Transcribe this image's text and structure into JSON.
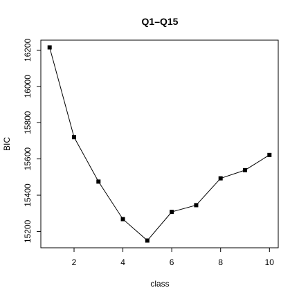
{
  "chart_data": {
    "type": "line",
    "title": "Q1–Q15",
    "xlabel": "class",
    "ylabel": "BIC",
    "x": [
      1,
      2,
      3,
      4,
      5,
      6,
      7,
      8,
      9,
      10
    ],
    "series": [
      {
        "values": [
          16215,
          15720,
          15475,
          15268,
          15150,
          15308,
          15345,
          15493,
          15538,
          15622
        ],
        "marker": "square",
        "color": "#000000"
      }
    ],
    "xlim": [
      0.64,
      10.36
    ],
    "ylim": [
      15110,
      16255
    ],
    "xticks": [
      2,
      4,
      6,
      8,
      10
    ],
    "yticks": [
      15200,
      15400,
      15600,
      15800,
      16000,
      16200
    ],
    "grid": false,
    "legend": "none"
  }
}
